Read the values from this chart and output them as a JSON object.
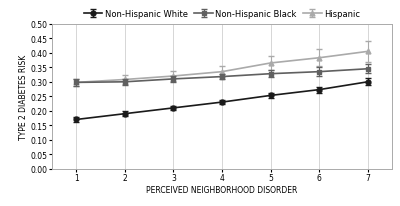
{
  "x": [
    1,
    2,
    3,
    4,
    5,
    6,
    7
  ],
  "white_y": [
    0.17,
    0.19,
    0.21,
    0.23,
    0.253,
    0.273,
    0.3
  ],
  "black_y": [
    0.298,
    0.3,
    0.31,
    0.318,
    0.328,
    0.335,
    0.345
  ],
  "hispanic_y": [
    0.298,
    0.308,
    0.32,
    0.335,
    0.365,
    0.383,
    0.405
  ],
  "white_err": [
    0.01,
    0.008,
    0.008,
    0.008,
    0.01,
    0.01,
    0.012
  ],
  "black_err": [
    0.012,
    0.01,
    0.01,
    0.01,
    0.012,
    0.015,
    0.015
  ],
  "hispanic_err": [
    0.012,
    0.015,
    0.018,
    0.018,
    0.025,
    0.03,
    0.035
  ],
  "white_color": "#1a1a1a",
  "black_color": "#606060",
  "hispanic_color": "#aaaaaa",
  "white_label": "Non-Hispanic White",
  "black_label": "Non-Hispanic Black",
  "hispanic_label": "Hispanic",
  "xlabel": "PERCEIVED NEIGHBORHOOD DISORDER",
  "ylabel": "TYPE 2 DIABETES RISK",
  "ylim": [
    0,
    0.5
  ],
  "yticks": [
    0,
    0.05,
    0.1,
    0.15,
    0.2,
    0.25,
    0.3,
    0.35,
    0.4,
    0.45,
    0.5
  ],
  "xlim": [
    0.5,
    7.5
  ],
  "xticks": [
    1,
    2,
    3,
    4,
    5,
    6,
    7
  ],
  "bg_color": "#ffffff",
  "plot_bg": "#ffffff",
  "axis_label_fontsize": 5.5,
  "tick_fontsize": 5.5,
  "legend_fontsize": 6.0,
  "linewidth": 1.2,
  "marker_size": 3.5,
  "capsize": 2,
  "elinewidth": 0.8
}
